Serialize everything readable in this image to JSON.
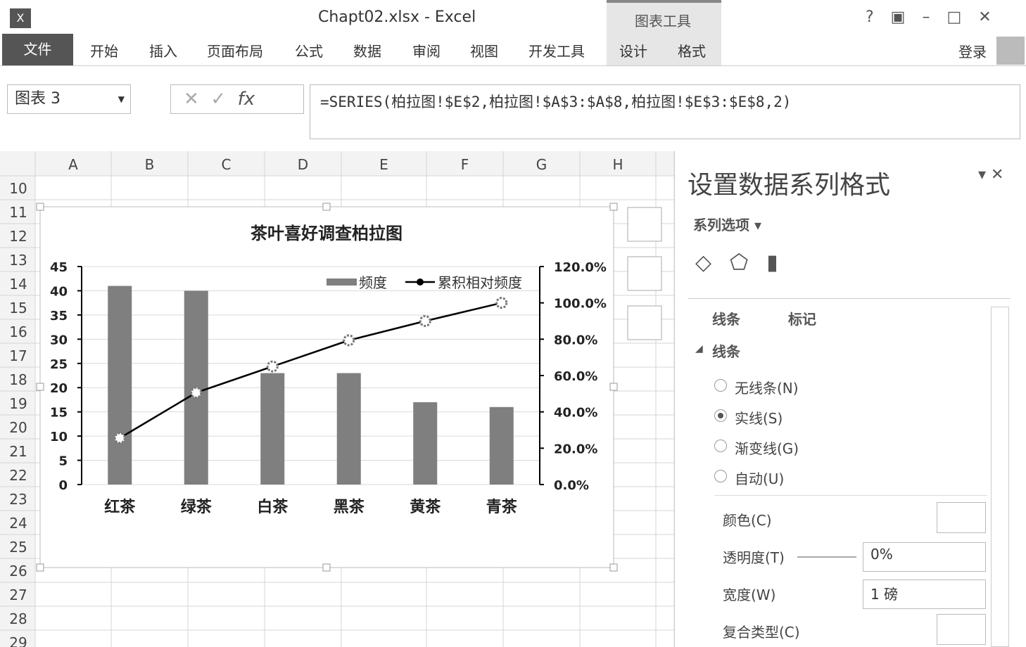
{
  "window": {
    "title": "Chapt02.xlsx - Excel",
    "context_tab_group": "图表工具",
    "sign_in": "登录"
  },
  "ribbon": {
    "tabs": [
      "文件",
      "开始",
      "插入",
      "页面布局",
      "公式",
      "数据",
      "审阅",
      "视图",
      "开发工具",
      "设计",
      "格式"
    ]
  },
  "formula_bar": {
    "name_box": "图表 3",
    "fx": "fx",
    "formula": "=SERIES(柏拉图!$E$2,柏拉图!$A$3:$A$8,柏拉图!$E$3:$E$8,2)"
  },
  "sheet": {
    "columns": [
      "A",
      "B",
      "C",
      "D",
      "E",
      "F",
      "G",
      "H"
    ],
    "rows": [
      "10",
      "11",
      "12",
      "13",
      "14",
      "15",
      "16",
      "17",
      "18",
      "19",
      "20",
      "21",
      "22",
      "23",
      "24",
      "25",
      "26",
      "27",
      "28",
      "29"
    ]
  },
  "chart_data": {
    "type": "bar",
    "title": "茶叶喜好调查柏拉图",
    "categories": [
      "红茶",
      "绿茶",
      "白茶",
      "黑茶",
      "黄茶",
      "青茶"
    ],
    "series": [
      {
        "name": "频度",
        "color": "#7f7f7f",
        "values": [
          41,
          40,
          23,
          23,
          17,
          16
        ]
      },
      {
        "name": "累积相对频度",
        "type": "line",
        "axis": "y2",
        "color": "#000000",
        "values": [
          25.6,
          50.6,
          65,
          79.4,
          90,
          100
        ]
      }
    ],
    "ylim": [
      0,
      45
    ],
    "yticks": [
      0,
      5,
      10,
      15,
      20,
      25,
      30,
      35,
      40,
      45
    ],
    "y2lim": [
      0,
      120
    ],
    "y2ticks": [
      {
        "value": 0,
        "label": "0.0%"
      },
      {
        "value": 20,
        "label": "20.0%"
      },
      {
        "value": 40,
        "label": "40.0%"
      },
      {
        "value": 60,
        "label": "60.0%"
      },
      {
        "value": 80,
        "label": "80.0%"
      },
      {
        "value": 100,
        "label": "100.0%"
      },
      {
        "value": 120,
        "label": "120.0%"
      }
    ],
    "grid": true,
    "legend": "top-right"
  },
  "format_pane": {
    "title": "设置数据系列格式",
    "dropdown": "系列选项",
    "subtabs": [
      "线条",
      "标记"
    ],
    "section": "线条",
    "line_options": [
      "无线条(N)",
      "实线(S)",
      "渐变线(G)",
      "自动(U)"
    ],
    "checked": [
      false,
      true,
      false,
      false
    ],
    "fields": [
      {
        "label": "颜色(C)"
      },
      {
        "label": "透明度(T)",
        "value": "0%"
      },
      {
        "label": "宽度(W)",
        "value": "1 磅"
      },
      {
        "label": "复合类型(C)"
      }
    ]
  }
}
